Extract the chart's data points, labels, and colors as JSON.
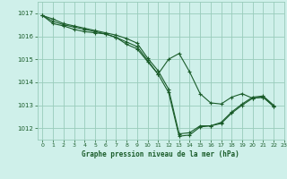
{
  "title": "Graphe pression niveau de la mer (hPa)",
  "bg_color": "#cff0ea",
  "grid_color": "#99ccbb",
  "line_color": "#1a5c2a",
  "xlim": [
    -0.5,
    23
  ],
  "ylim": [
    1011.5,
    1017.5
  ],
  "yticks": [
    1012,
    1013,
    1014,
    1015,
    1016,
    1017
  ],
  "xticks": [
    0,
    1,
    2,
    3,
    4,
    5,
    6,
    7,
    8,
    9,
    10,
    11,
    12,
    13,
    14,
    15,
    16,
    17,
    18,
    19,
    20,
    21,
    22,
    23
  ],
  "series1": [
    1016.9,
    1016.75,
    1016.55,
    1016.45,
    1016.35,
    1016.25,
    1016.15,
    1016.05,
    1015.9,
    1015.7,
    1015.05,
    1014.5,
    1013.7,
    1011.75,
    1011.8,
    1012.1,
    1012.1,
    1012.25,
    1012.7,
    1013.05,
    1013.35,
    1013.4,
    1013.0,
    null
  ],
  "series2": [
    1016.9,
    1016.65,
    1016.5,
    1016.4,
    1016.3,
    1016.2,
    1016.1,
    1015.95,
    1015.75,
    1015.55,
    1014.95,
    1014.35,
    1013.55,
    1011.65,
    1011.7,
    1012.05,
    1012.1,
    1012.2,
    1012.65,
    1013.0,
    1013.3,
    1013.35,
    1012.95,
    null
  ],
  "series3": [
    1016.9,
    1016.55,
    1016.45,
    1016.3,
    1016.2,
    1016.15,
    1016.1,
    1015.95,
    1015.65,
    1015.45,
    1014.9,
    1014.35,
    1015.0,
    1015.25,
    1014.45,
    1013.5,
    1013.1,
    1013.05,
    1013.35,
    1013.5,
    1013.3,
    1013.35,
    1012.95,
    null
  ]
}
